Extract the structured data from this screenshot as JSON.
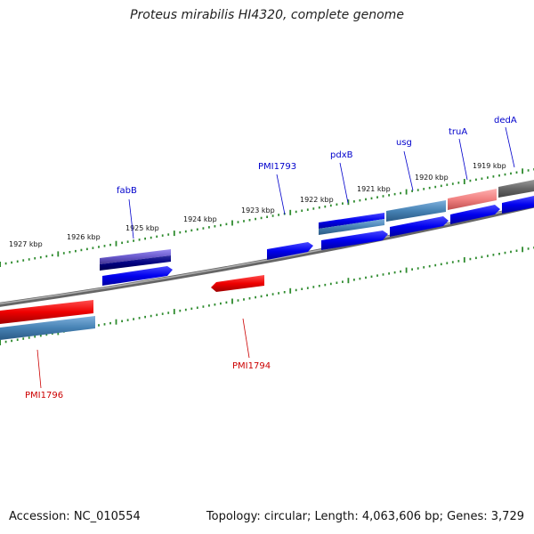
{
  "title": "Proteus mirabilis HI4320, complete genome",
  "footer": {
    "accession": "Accession: NC_010554",
    "topology": "Topology: circular; Length: 4,063,606 bp; Genes: 3,729"
  },
  "scale_labels": [
    "1927 kbp",
    "1926 kbp",
    "1925 kbp",
    "1924 kbp",
    "1923 kbp",
    "1922 kbp",
    "1921 kbp",
    "1920 kbp",
    "1919 kbp"
  ],
  "gene_labels": [
    {
      "text": "fabB",
      "color": "#0000cc"
    },
    {
      "text": "PMI1793",
      "color": "#0000cc"
    },
    {
      "text": "pdxB",
      "color": "#0000cc"
    },
    {
      "text": "usg",
      "color": "#0000cc"
    },
    {
      "text": "truA",
      "color": "#0000cc"
    },
    {
      "text": "dedA",
      "color": "#0000cc"
    },
    {
      "text": "PMI1794",
      "color": "#cc0000"
    },
    {
      "text": "PMI1796",
      "color": "#cc0000"
    }
  ],
  "colors": {
    "backbone": "#808080",
    "tick": "#2e8b2e",
    "cds_forward": "#0000ee",
    "cds_reverse": "#ee0000",
    "gene_steel": "#4682b4",
    "gene_purple": "#6a5acd",
    "gene_navy": "#000080",
    "gene_pink": "#f08080",
    "gene_gray": "#666666"
  }
}
